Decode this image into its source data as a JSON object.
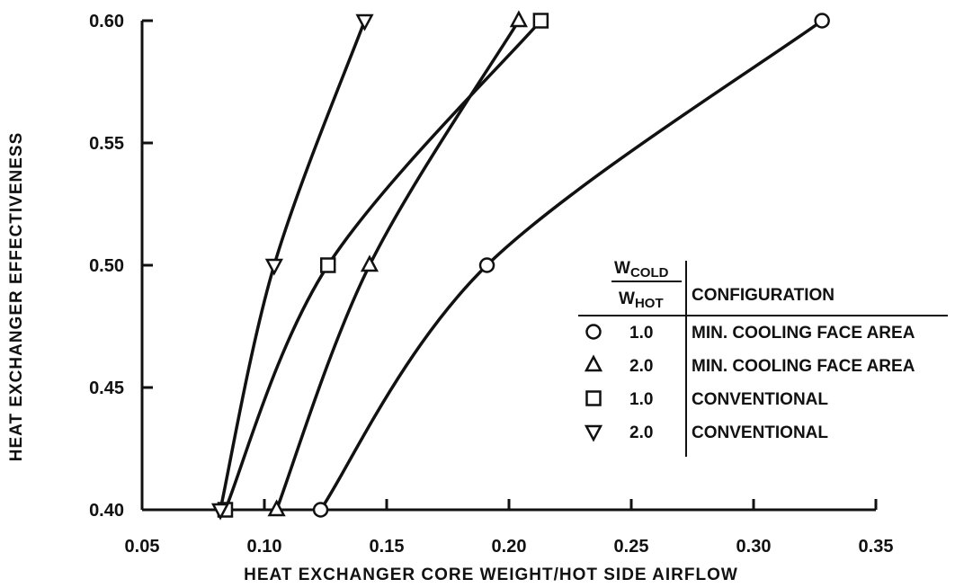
{
  "chart_data": {
    "type": "line",
    "xlabel": "HEAT EXCHANGER CORE WEIGHT/HOT SIDE AIRFLOW",
    "ylabel": "HEAT EXCHANGER EFFECTIVENESS",
    "xlim": [
      0.05,
      0.35
    ],
    "ylim": [
      0.4,
      0.6
    ],
    "xticks": [
      "0.05",
      "0.10",
      "0.15",
      "0.20",
      "0.25",
      "0.30",
      "0.35"
    ],
    "yticks": [
      "0.40",
      "0.45",
      "0.50",
      "0.55",
      "0.60"
    ],
    "grid": false,
    "legend_position": "right",
    "legend": {
      "ratio_numerator": "W",
      "ratio_numerator_sub": "COLD",
      "ratio_denominator": "W",
      "ratio_denominator_sub": "HOT",
      "configuration_header": "CONFIGURATION"
    },
    "series": [
      {
        "marker": "circle",
        "ratio": "1.0",
        "configuration": "MIN. COOLING FACE AREA",
        "x": [
          0.123,
          0.191,
          0.328
        ],
        "y": [
          0.4,
          0.5,
          0.6
        ]
      },
      {
        "marker": "triangle-up",
        "ratio": "2.0",
        "configuration": "MIN. COOLING FACE AREA",
        "x": [
          0.105,
          0.143,
          0.204
        ],
        "y": [
          0.4,
          0.5,
          0.6
        ]
      },
      {
        "marker": "square",
        "ratio": "1.0",
        "configuration": "CONVENTIONAL",
        "x": [
          0.084,
          0.126,
          0.213
        ],
        "y": [
          0.4,
          0.5,
          0.6
        ]
      },
      {
        "marker": "triangle-down",
        "ratio": "2.0",
        "configuration": "CONVENTIONAL",
        "x": [
          0.082,
          0.104,
          0.141
        ],
        "y": [
          0.4,
          0.5,
          0.6
        ]
      }
    ]
  }
}
